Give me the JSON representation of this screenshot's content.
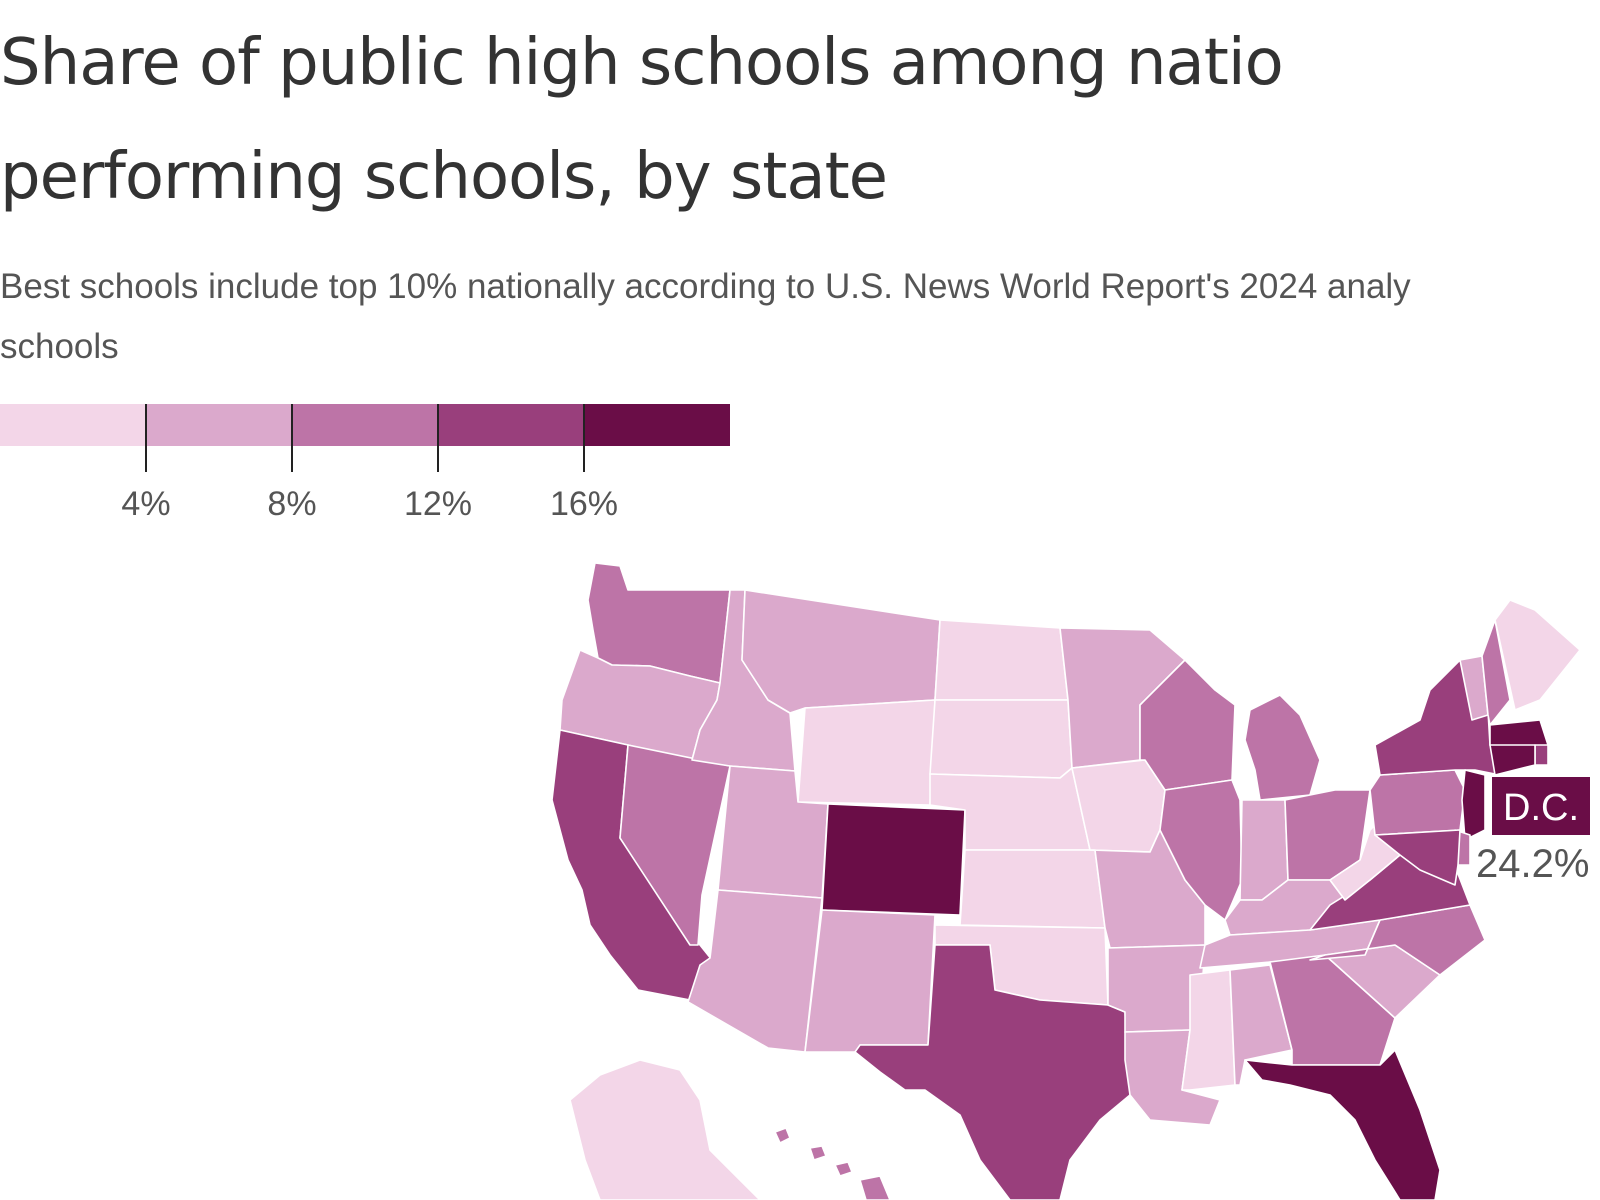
{
  "header": {
    "title_line1": "Share of public high schools among natio",
    "title_line2": "performing schools, by state",
    "subtitle_line1": "Best schools include top 10% nationally according to U.S. News World Report's 2024 analy",
    "subtitle_line2": "schools"
  },
  "legend": {
    "colors": [
      "#f3d6e8",
      "#dba9cc",
      "#bd74a7",
      "#993f7c",
      "#6a0d47"
    ],
    "thresholds": [
      4,
      8,
      12,
      16
    ],
    "tick_labels": [
      "4%",
      "8%",
      "12%",
      "16%"
    ]
  },
  "chart_data": {
    "type": "choropleth",
    "title": "Share of public high schools among natio performing schools, by state",
    "bins": [
      {
        "range": "< 4%",
        "color": "#f3d6e8"
      },
      {
        "range": "4% – 8%",
        "color": "#dba9cc"
      },
      {
        "range": "8% – 12%",
        "color": "#bd74a7"
      },
      {
        "range": "12% – 16%",
        "color": "#993f7c"
      },
      {
        "range": "≥ 16%",
        "color": "#6a0d47"
      }
    ],
    "states": [
      {
        "state": "WA",
        "bin": 2
      },
      {
        "state": "OR",
        "bin": 1
      },
      {
        "state": "CA",
        "bin": 3
      },
      {
        "state": "NV",
        "bin": 2
      },
      {
        "state": "ID",
        "bin": 1
      },
      {
        "state": "MT",
        "bin": 1
      },
      {
        "state": "WY",
        "bin": 0
      },
      {
        "state": "UT",
        "bin": 1
      },
      {
        "state": "CO",
        "bin": 4
      },
      {
        "state": "AZ",
        "bin": 1
      },
      {
        "state": "NM",
        "bin": 1
      },
      {
        "state": "ND",
        "bin": 0
      },
      {
        "state": "SD",
        "bin": 0
      },
      {
        "state": "NE",
        "bin": 0
      },
      {
        "state": "KS",
        "bin": 0
      },
      {
        "state": "OK",
        "bin": 0
      },
      {
        "state": "TX",
        "bin": 3
      },
      {
        "state": "MN",
        "bin": 1
      },
      {
        "state": "IA",
        "bin": 0
      },
      {
        "state": "MO",
        "bin": 1
      },
      {
        "state": "AR",
        "bin": 1
      },
      {
        "state": "LA",
        "bin": 1
      },
      {
        "state": "WI",
        "bin": 2
      },
      {
        "state": "IL",
        "bin": 2
      },
      {
        "state": "MI",
        "bin": 2
      },
      {
        "state": "IN",
        "bin": 1
      },
      {
        "state": "OH",
        "bin": 2
      },
      {
        "state": "KY",
        "bin": 1
      },
      {
        "state": "TN",
        "bin": 1
      },
      {
        "state": "MS",
        "bin": 0
      },
      {
        "state": "AL",
        "bin": 1
      },
      {
        "state": "GA",
        "bin": 2
      },
      {
        "state": "FL",
        "bin": 4
      },
      {
        "state": "SC",
        "bin": 1
      },
      {
        "state": "NC",
        "bin": 2
      },
      {
        "state": "VA",
        "bin": 3
      },
      {
        "state": "WV",
        "bin": 0
      },
      {
        "state": "PA",
        "bin": 2
      },
      {
        "state": "NY",
        "bin": 3
      },
      {
        "state": "VT",
        "bin": 1
      },
      {
        "state": "NH",
        "bin": 2
      },
      {
        "state": "ME",
        "bin": 0
      },
      {
        "state": "MA",
        "bin": 4
      },
      {
        "state": "CT",
        "bin": 4
      },
      {
        "state": "RI",
        "bin": 3
      },
      {
        "state": "NJ",
        "bin": 4
      },
      {
        "state": "MD",
        "bin": 3
      },
      {
        "state": "DE",
        "bin": 2
      },
      {
        "state": "AK",
        "bin": 0
      },
      {
        "state": "HI",
        "bin": 2
      }
    ],
    "annotations": [
      {
        "label": "D.C.",
        "value": "24.2%"
      }
    ]
  },
  "dc_label": {
    "name": "D.C.",
    "value": "24.2%"
  }
}
